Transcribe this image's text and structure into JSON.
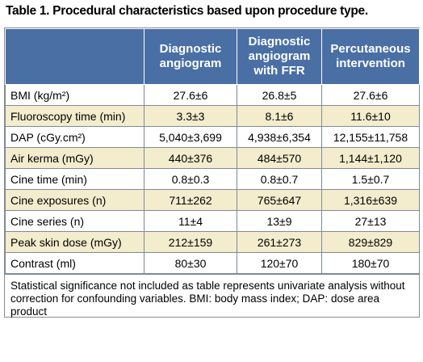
{
  "title": "Table 1. Procedural characteristics based upon procedure type.",
  "headers": [
    "",
    "Diagnostic angiogram",
    "Diagnostic angiogram with FFR",
    "Percutaneous intervention"
  ],
  "rows": [
    {
      "label": "BMI (kg/m²)",
      "values": [
        "27.6±6",
        "26.8±5",
        "27.6±6"
      ]
    },
    {
      "label": "Fluoroscopy time (min)",
      "values": [
        "3.3±3",
        "8.1±6",
        "11.6±10"
      ]
    },
    {
      "label": "DAP (cGy.cm²)",
      "values": [
        "5,040±3,699",
        "4,938±6,354",
        "12,155±11,758"
      ]
    },
    {
      "label": "Air kerma (mGy)",
      "values": [
        "440±376",
        "484±570",
        "1,144±1,120"
      ]
    },
    {
      "label": "Cine time (min)",
      "values": [
        "0.8±0.3",
        "0.8±0.7",
        "1.5±0.7"
      ]
    },
    {
      "label": "Cine exposures (n)",
      "values": [
        "711±262",
        "765±647",
        "1,316±639"
      ]
    },
    {
      "label": "Cine series (n)",
      "values": [
        "11±4",
        "13±9",
        "27±13"
      ]
    },
    {
      "label": "Peak skin dose (mGy)",
      "values": [
        "212±159",
        "261±273",
        "829±829"
      ]
    },
    {
      "label": "Contrast (ml)",
      "values": [
        "80±30",
        "120±70",
        "180±70"
      ]
    }
  ],
  "footnote": "Statistical significance not included as table represents univariate analysis without correction for confounding variables. BMI: body mass index; DAP: dose area product",
  "colors": {
    "header_bg": "#4a6fa5",
    "stripe": "#f3eccd",
    "border": "#7d8a96"
  }
}
